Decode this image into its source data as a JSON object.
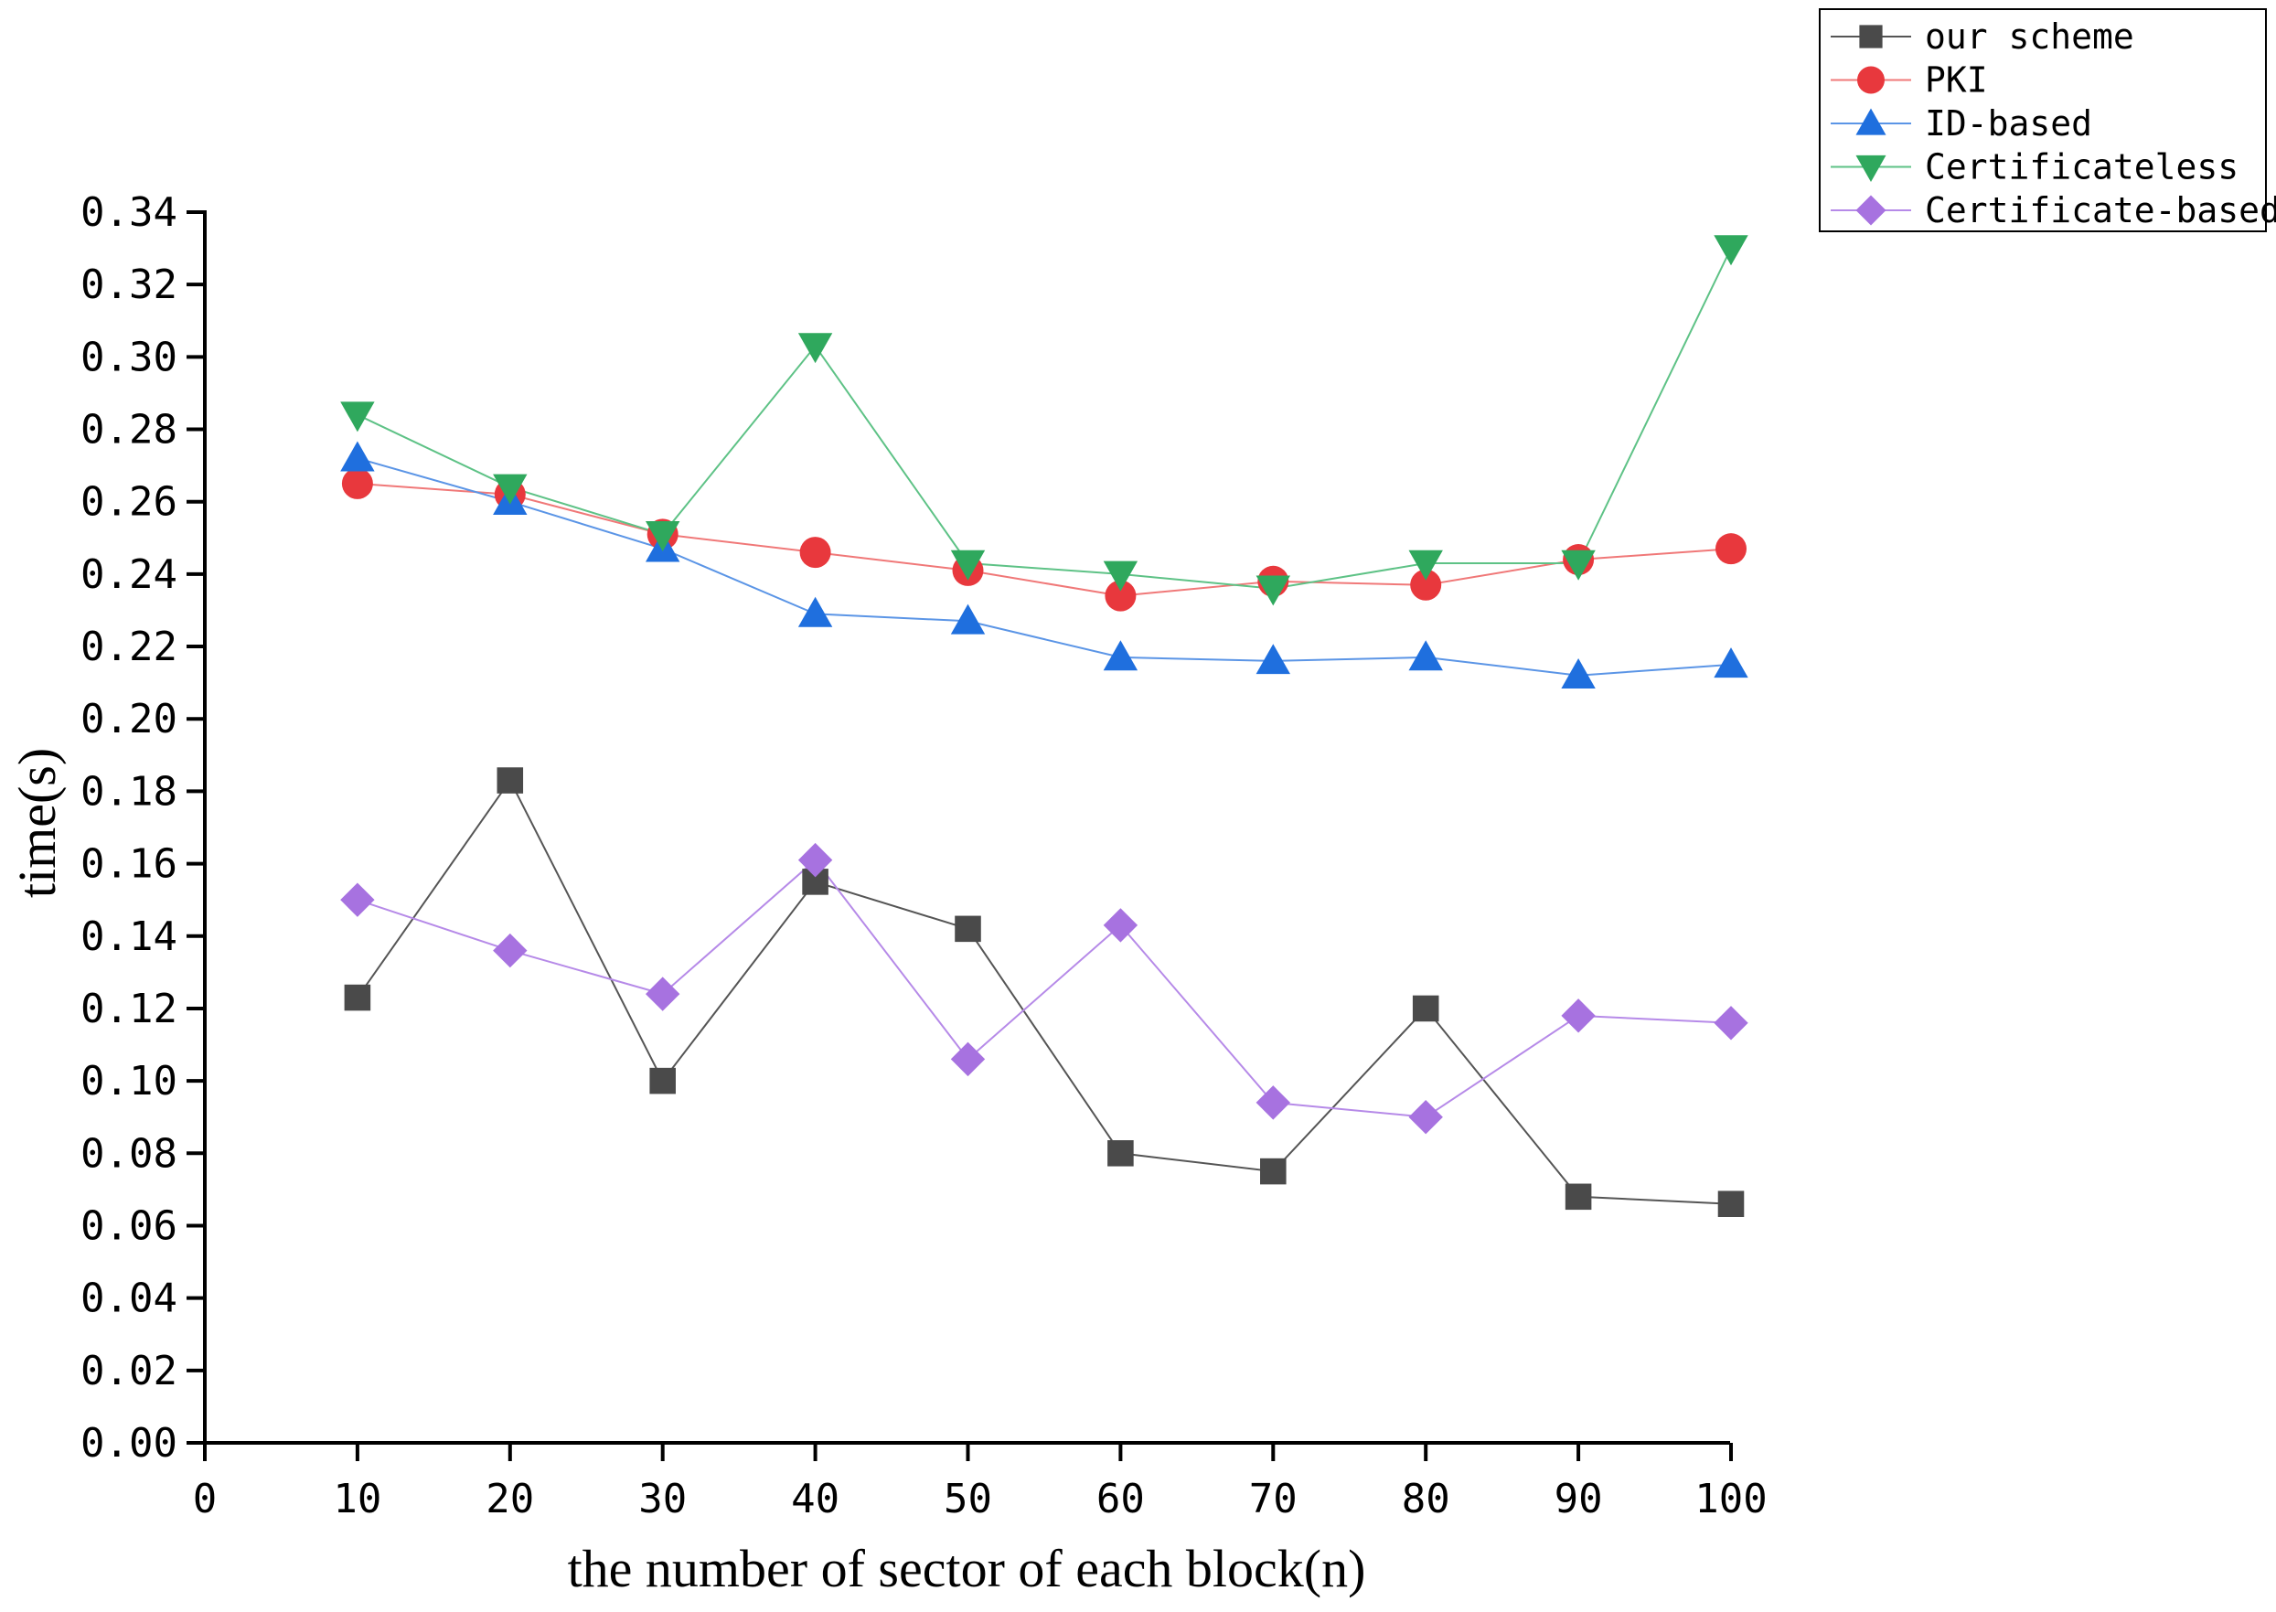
{
  "chart_data": {
    "type": "line",
    "title": "",
    "xlabel": "the number of sector of each block(n)",
    "ylabel": "time(s)",
    "xlim": [
      0,
      100
    ],
    "ylim": [
      0,
      0.34
    ],
    "x_ticks": [
      "0",
      "10",
      "20",
      "30",
      "40",
      "50",
      "60",
      "70",
      "80",
      "90",
      "100"
    ],
    "y_ticks": [
      "0.00",
      "0.02",
      "0.04",
      "0.06",
      "0.08",
      "0.10",
      "0.12",
      "0.14",
      "0.16",
      "0.18",
      "0.20",
      "0.22",
      "0.24",
      "0.26",
      "0.28",
      "0.30",
      "0.32",
      "0.34"
    ],
    "legend_position": "top-right",
    "x": [
      10,
      20,
      30,
      40,
      50,
      60,
      70,
      80,
      90,
      100
    ],
    "series": [
      {
        "name": "our scheme",
        "marker": "square",
        "color": "#4a4a4a",
        "line_color": "#555555",
        "values": [
          0.123,
          0.183,
          0.1,
          0.155,
          0.142,
          0.08,
          0.075,
          0.12,
          0.068,
          0.066
        ]
      },
      {
        "name": "PKI",
        "marker": "circle",
        "color": "#e8383d",
        "line_color": "#f07878",
        "values": [
          0.265,
          0.262,
          0.251,
          0.246,
          0.241,
          0.234,
          0.238,
          0.237,
          0.244,
          0.247
        ]
      },
      {
        "name": "ID-based",
        "marker": "triangle-up",
        "color": "#1f6fde",
        "line_color": "#5b95e6",
        "values": [
          0.272,
          0.26,
          0.247,
          0.229,
          0.227,
          0.217,
          0.216,
          0.217,
          0.212,
          0.215
        ]
      },
      {
        "name": "Certificateless",
        "marker": "triangle-down",
        "color": "#2fa85d",
        "line_color": "#5ec286",
        "values": [
          0.284,
          0.264,
          0.251,
          0.303,
          0.243,
          0.24,
          0.236,
          0.243,
          0.243,
          0.33
        ]
      },
      {
        "name": "Certificate-based",
        "marker": "diamond",
        "color": "#a772e0",
        "line_color": "#b68ae8",
        "values": [
          0.15,
          0.136,
          0.124,
          0.161,
          0.106,
          0.143,
          0.094,
          0.09,
          0.118,
          0.116
        ]
      }
    ]
  }
}
